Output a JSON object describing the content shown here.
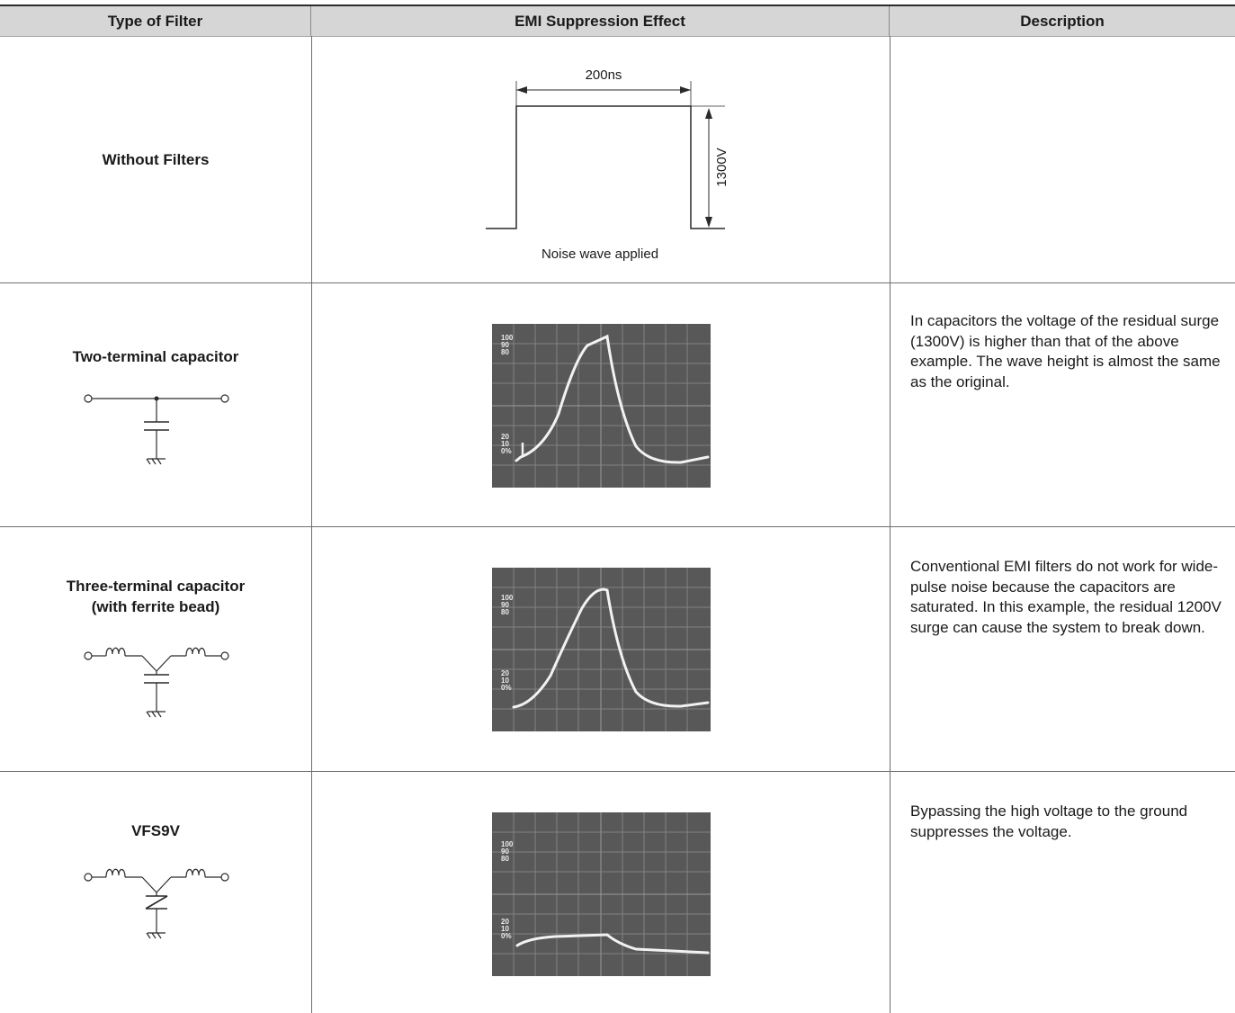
{
  "table": {
    "headers": [
      "Type of Filter",
      "EMI Suppression Effect",
      "Description"
    ],
    "rows": [
      {
        "filter": "Without Filters",
        "waveform": {
          "pulse_width": "200ns",
          "amplitude": "1300V",
          "caption": "Noise wave applied"
        },
        "description": ""
      },
      {
        "filter": "Two-terminal capacitor",
        "scope_labels": {
          "top": [
            "100",
            "90",
            "80"
          ],
          "bottom": [
            "20",
            "10",
            "0%"
          ]
        },
        "description": "In capacitors the voltage of the residual surge (1300V) is higher than that of the above example. The wave height is almost the same as the original."
      },
      {
        "filter_line1": "Three-terminal capacitor",
        "filter_line2": "(with ferrite bead)",
        "scope_labels": {
          "top": [
            "100",
            "90",
            "80"
          ],
          "bottom": [
            "20",
            "10",
            "0%"
          ]
        },
        "description": "Conventional EMI filters do not work for wide-pulse noise because the capacitors are saturated. In this example, the residual 1200V surge can cause the system to break down."
      },
      {
        "filter": "VFS9V",
        "scope_labels": {
          "top": [
            "100",
            "90",
            "80"
          ],
          "bottom": [
            "20",
            "10",
            "0%"
          ]
        },
        "description": "Bypassing the high voltage to the ground suppresses the voltage."
      }
    ]
  },
  "colors": {
    "header_bg": "#d6d6d6",
    "scope_bg": "#585858",
    "trace": "#f2f2f2",
    "rule": "#6e6e6e"
  }
}
